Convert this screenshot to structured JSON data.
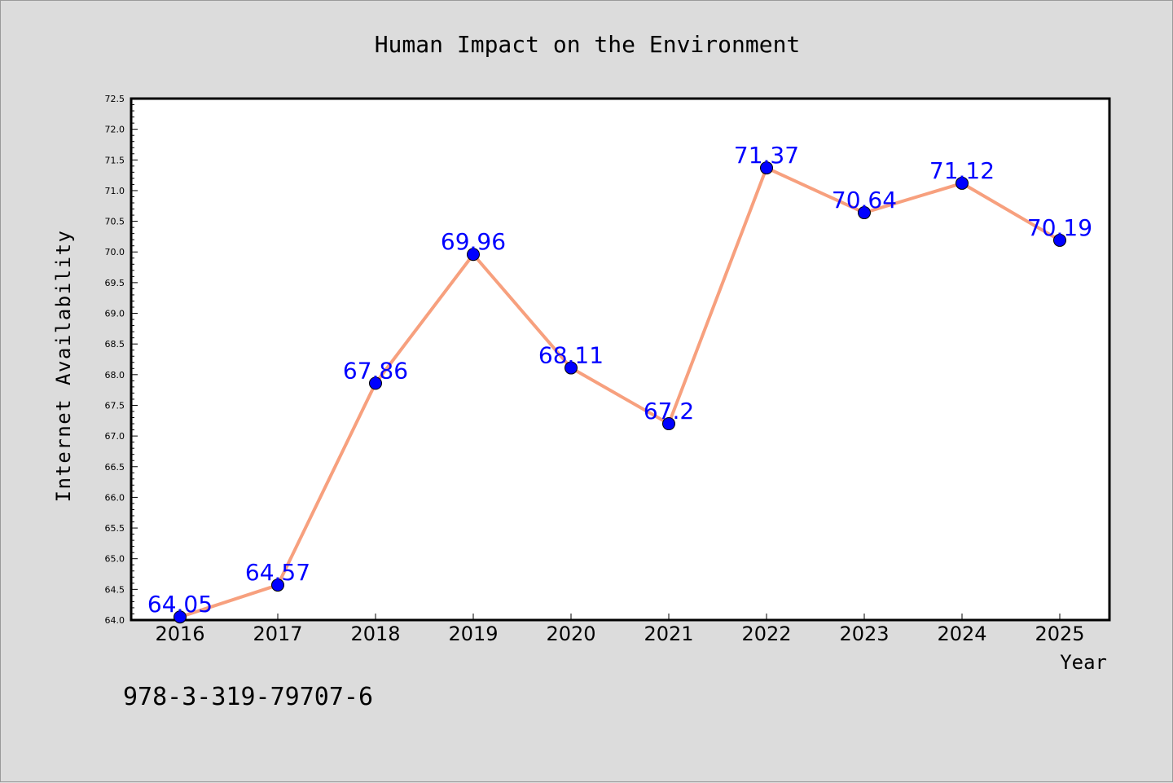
{
  "chart_data": {
    "type": "line",
    "title": "Human Impact on the Environment",
    "xlabel": "Year",
    "ylabel": "Internet Availability",
    "categories": [
      "2016",
      "2017",
      "2018",
      "2019",
      "2020",
      "2021",
      "2022",
      "2023",
      "2024",
      "2025"
    ],
    "series": [
      {
        "values": [
          64.05,
          64.57,
          67.86,
          69.96,
          68.11,
          67.2,
          71.37,
          70.64,
          71.12,
          70.19
        ],
        "labels": [
          "64.05",
          "64.57",
          "67.86",
          "69.96",
          "68.11",
          "67.2",
          "71.37",
          "70.64",
          "71.12",
          "70.19"
        ]
      }
    ],
    "ylim": [
      64.0,
      72.5
    ],
    "yticks": [
      "64.0",
      "64.5",
      "65.0",
      "65.5",
      "66.0",
      "66.5",
      "67.0",
      "67.5",
      "68.0",
      "68.5",
      "69.0",
      "69.5",
      "70.0",
      "70.5",
      "71.0",
      "71.5",
      "72.0",
      "72.5"
    ],
    "grid": false,
    "legend": "none",
    "colors": {
      "line": "#f7a07e",
      "marker": "#0000ff",
      "label": "#0000ff",
      "background": "#dcdcdc",
      "plot_area": "#ffffff"
    }
  },
  "footer_text": "978-3-319-79707-6"
}
